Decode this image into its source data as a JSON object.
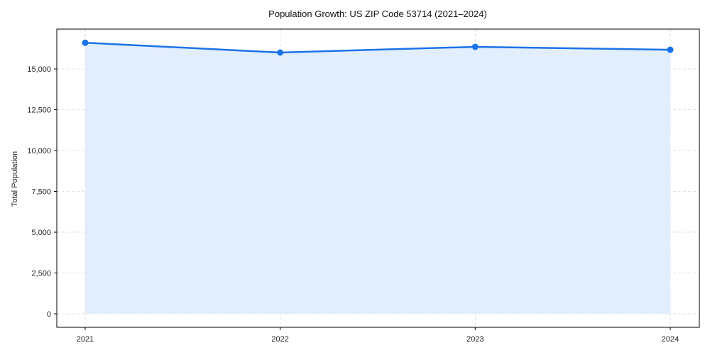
{
  "chart_data": {
    "type": "area",
    "title": "Population Growth: US ZIP Code 53714 (2021–2024)",
    "xlabel": "",
    "ylabel": "Total Population",
    "categories": [
      "2021",
      "2022",
      "2023",
      "2024"
    ],
    "series": [
      {
        "name": "Total Population",
        "values": [
          16600,
          16000,
          16350,
          16170
        ],
        "color": "#1a73e8",
        "fill": "#e3eefd"
      }
    ],
    "yticks": [
      0,
      2500,
      5000,
      7500,
      10000,
      12500,
      15000
    ],
    "ytick_labels": [
      "0",
      "2,500",
      "5,000",
      "7,500",
      "10,000",
      "12,500",
      "15,000"
    ],
    "ylim": [
      -800,
      17400
    ],
    "grid": true,
    "legend": false
  }
}
